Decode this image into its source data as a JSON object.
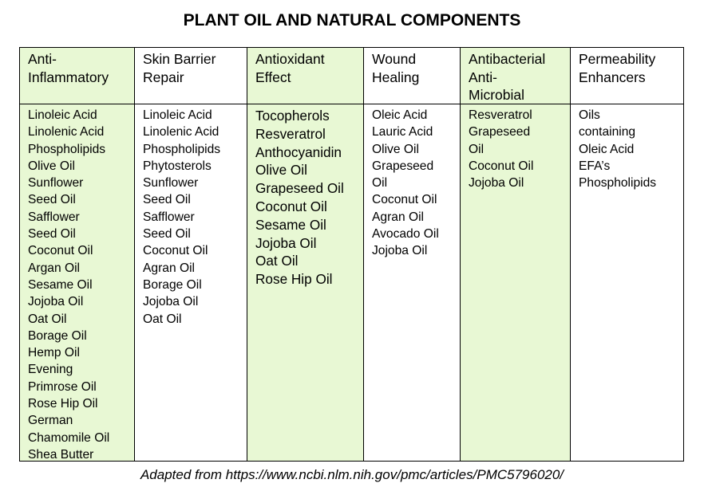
{
  "title": "PLANT OIL AND NATURAL COMPONENTS",
  "caption": "Adapted from https://www.ncbi.nlm.nih.gov/pmc/articles/PMC5796020/",
  "colors": {
    "highlight": "#e8f8d4",
    "border": "#000000"
  },
  "columns": [
    {
      "header": [
        "Anti-",
        "Inflammatory"
      ],
      "items": [
        "Linoleic Acid",
        "Linolenic Acid",
        "Phospholipids",
        "Olive Oil",
        "Sunflower",
        "Seed Oil",
        "Safflower",
        "Seed Oil",
        "Coconut Oil",
        "Argan Oil",
        "Sesame Oil",
        "Jojoba Oil",
        "Oat Oil",
        "Borage Oil",
        "Hemp Oil",
        "Evening",
        "Primrose Oil",
        "Rose Hip Oil",
        "German",
        "Chamomile Oil",
        "Shea Butter"
      ]
    },
    {
      "header": [
        "Skin Barrier",
        "Repair"
      ],
      "items": [
        "Linoleic Acid",
        "Linolenic Acid",
        "Phospholipids",
        "Phytosterols",
        "Sunflower",
        "Seed Oil",
        "Safflower",
        "Seed Oil",
        "Coconut Oil",
        "Agran Oil",
        "Borage Oil",
        "Jojoba Oil",
        "Oat Oil"
      ]
    },
    {
      "header": [
        "Antioxidant",
        "Effect"
      ],
      "items": [
        "Tocopherols",
        "Resveratrol",
        "Anthocyanidin",
        "Olive Oil",
        "Grapeseed Oil",
        "Coconut Oil",
        "Sesame Oil",
        "Jojoba Oil",
        "Oat Oil",
        "Rose Hip Oil"
      ]
    },
    {
      "header": [
        "Wound",
        "Healing"
      ],
      "items": [
        "Oleic Acid",
        "Lauric Acid",
        "Olive Oil",
        "Grapeseed",
        "Oil",
        "Coconut Oil",
        "Agran Oil",
        "Avocado Oil",
        "Jojoba Oil"
      ]
    },
    {
      "header": [
        "Antibacterial",
        "Anti-",
        "Microbial"
      ],
      "items": [
        "Resveratrol",
        "Grapeseed",
        "Oil",
        "Coconut Oil",
        "Jojoba Oil"
      ]
    },
    {
      "header": [
        "Permeability",
        "Enhancers"
      ],
      "items": [
        "Oils",
        "containing",
        "Oleic Acid",
        "EFA’s",
        "Phospholipids"
      ]
    }
  ]
}
